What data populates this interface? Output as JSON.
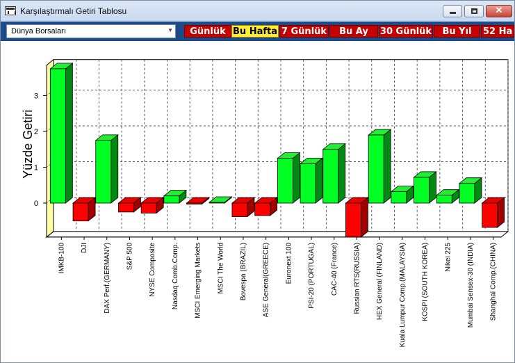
{
  "window": {
    "title": "Karşılaştırmalı Getiri Tablosu",
    "icon": "app-icon"
  },
  "toolbar": {
    "dropdown_value": "Dünya Borsaları",
    "periods": [
      {
        "label": "Günlük",
        "active": false
      },
      {
        "label": "Bu Hafta",
        "active": true
      },
      {
        "label": "7 Günlük",
        "active": false
      },
      {
        "label": "Bu Ay",
        "active": false
      },
      {
        "label": "30 Günlük",
        "active": false
      },
      {
        "label": "Bu Yıl",
        "active": false
      },
      {
        "label": "52 Ha",
        "active": false
      }
    ]
  },
  "chart_data": {
    "type": "bar",
    "ylabel": "Yüzde Getiri",
    "ylim": [
      -0.95,
      3.85
    ],
    "yticks": [
      0,
      1,
      2,
      3
    ],
    "grid": true,
    "colors": {
      "positive": "#00ff22",
      "negative": "#ff0000"
    },
    "categories": [
      "IMKB-100",
      "DJI",
      "DAX Perf.(GERMANY)",
      "S&P 500",
      "NYSE Composite",
      "Nasdaq Comb.Comp.",
      "MSCI Emerging Markets",
      "MSCI The World",
      "Bovespa (BRAZIL)",
      "ASE General(GREECE)",
      "Euronext 100",
      "PSI-20 (PORTUGAL)",
      "CAC-40 (France)",
      "Russian RTS(RUSSIA)",
      "HEX General (FINLAND)",
      "Kuala Lumpur Comp.(MALAYSIA)",
      "KOSPI (SOUTH KOREA)",
      "Nikei 225",
      "Mumbai Sensex-30 (INDIA)",
      "Shanghai Comp.(CHINA)"
    ],
    "values": [
      3.75,
      -0.5,
      1.75,
      -0.25,
      -0.28,
      0.2,
      -0.03,
      0.02,
      -0.38,
      -0.35,
      1.25,
      1.1,
      1.5,
      -0.95,
      1.9,
      0.32,
      0.72,
      0.22,
      0.55,
      -0.68
    ]
  }
}
